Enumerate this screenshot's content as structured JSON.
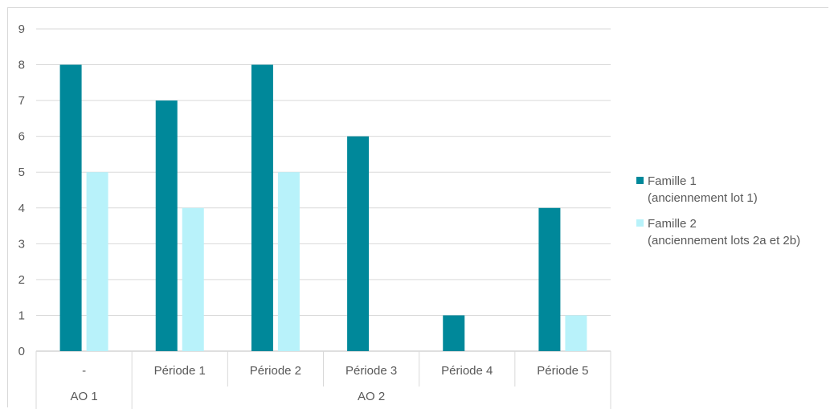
{
  "chart_data": {
    "type": "bar",
    "title": "",
    "xlabel": "",
    "ylabel": "",
    "ylim": [
      0,
      9
    ],
    "yticks": [
      0,
      1,
      2,
      3,
      4,
      5,
      6,
      7,
      8,
      9
    ],
    "grid": true,
    "legend_position": "right",
    "categories": [
      "-",
      "Période 1",
      "Période 2",
      "Période 3",
      "Période 4",
      "Période 5"
    ],
    "groups": [
      {
        "label": "AO 1",
        "categories": [
          "-"
        ]
      },
      {
        "label": "AO 2",
        "categories": [
          "Période 1",
          "Période 2",
          "Période 3",
          "Période 4",
          "Période 5"
        ]
      }
    ],
    "series": [
      {
        "name_line1": "Famille 1",
        "name_line2": "(anciennement lot 1)",
        "color": "#00889a",
        "values": [
          8,
          7,
          8,
          6,
          1,
          4
        ]
      },
      {
        "name_line1": "Famille 2",
        "name_line2": "(anciennement lots 2a et 2b)",
        "color": "#b8f2fa",
        "values": [
          5,
          4,
          5,
          0,
          0,
          1
        ]
      }
    ]
  }
}
